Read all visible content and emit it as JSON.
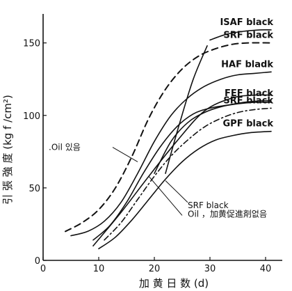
{
  "chart_data": {
    "type": "line",
    "xlabel": "加 黄 日 数 (d)",
    "ylabel": "引 張 強 度 (kg f /cm²)",
    "xlim": [
      0,
      43
    ],
    "ylim": [
      0,
      170
    ],
    "x_ticks": [
      0,
      10,
      20,
      30,
      40
    ],
    "y_ticks": [
      0,
      50,
      100,
      150
    ],
    "grid": false,
    "legend": "labels at line ends",
    "series": [
      {
        "name": "ISAF black",
        "style": "solid",
        "x": [
          30,
          33,
          36,
          39,
          41
        ],
        "y": [
          152,
          156,
          158,
          159,
          159
        ]
      },
      {
        "name": "SRF black",
        "style": "dashed",
        "x": [
          4,
          7,
          10,
          13,
          16,
          19,
          22,
          25,
          28,
          31,
          34,
          37,
          41
        ],
        "y": [
          20,
          26,
          35,
          50,
          72,
          98,
          118,
          132,
          141,
          146,
          149,
          150,
          150
        ]
      },
      {
        "name": "HAF bladk",
        "style": "solid",
        "x": [
          5,
          8,
          11,
          14,
          17,
          20,
          23,
          26,
          29,
          32,
          35,
          38,
          41
        ],
        "y": [
          17,
          20,
          27,
          40,
          60,
          82,
          100,
          112,
          120,
          125,
          128,
          129,
          130
        ]
      },
      {
        "name": "FEF black",
        "style": "solid",
        "x": [
          9,
          12,
          15,
          18,
          21,
          24,
          27,
          30,
          33,
          36,
          39,
          41
        ],
        "y": [
          14,
          24,
          40,
          60,
          78,
          92,
          101,
          105,
          107,
          109,
          110,
          110
        ]
      },
      {
        "name": "SRF black",
        "style": "dashdot",
        "x": [
          11,
          14,
          17,
          20,
          23,
          26,
          29,
          32,
          35,
          38,
          41
        ],
        "y": [
          14,
          26,
          42,
          58,
          72,
          83,
          92,
          98,
          102,
          104,
          105
        ]
      },
      {
        "name": "GPF black",
        "style": "solid",
        "x": [
          10,
          13,
          16,
          19,
          22,
          25,
          28,
          31,
          34,
          37,
          41
        ],
        "y": [
          8,
          16,
          28,
          42,
          56,
          68,
          77,
          83,
          86,
          88,
          89
        ]
      },
      {
        "name": "",
        "style": "solid",
        "x": [
          20,
          23,
          26,
          29,
          32,
          35,
          38,
          41
        ],
        "y": [
          60,
          82,
          95,
          102,
          106,
          108,
          109,
          109
        ]
      },
      {
        "name": "",
        "style": "solid",
        "x": [
          9,
          14,
          19,
          24,
          29,
          34,
          38,
          41
        ],
        "y": [
          10,
          33,
          58,
          82,
          103,
          112,
          114,
          114
        ]
      },
      {
        "name": "",
        "style": "solid",
        "x": [
          22,
          24.5,
          27,
          29.5
        ],
        "y": [
          60,
          94,
          125,
          148
        ]
      }
    ],
    "annotations": [
      {
        "text": ".Oil 있음",
        "x": 1,
        "y": 76
      },
      {
        "text": "SRF black",
        "x": 26,
        "y": 36
      },
      {
        "text": "Oil ，加黄促進剤없음",
        "x": 26,
        "y": 30
      }
    ]
  }
}
